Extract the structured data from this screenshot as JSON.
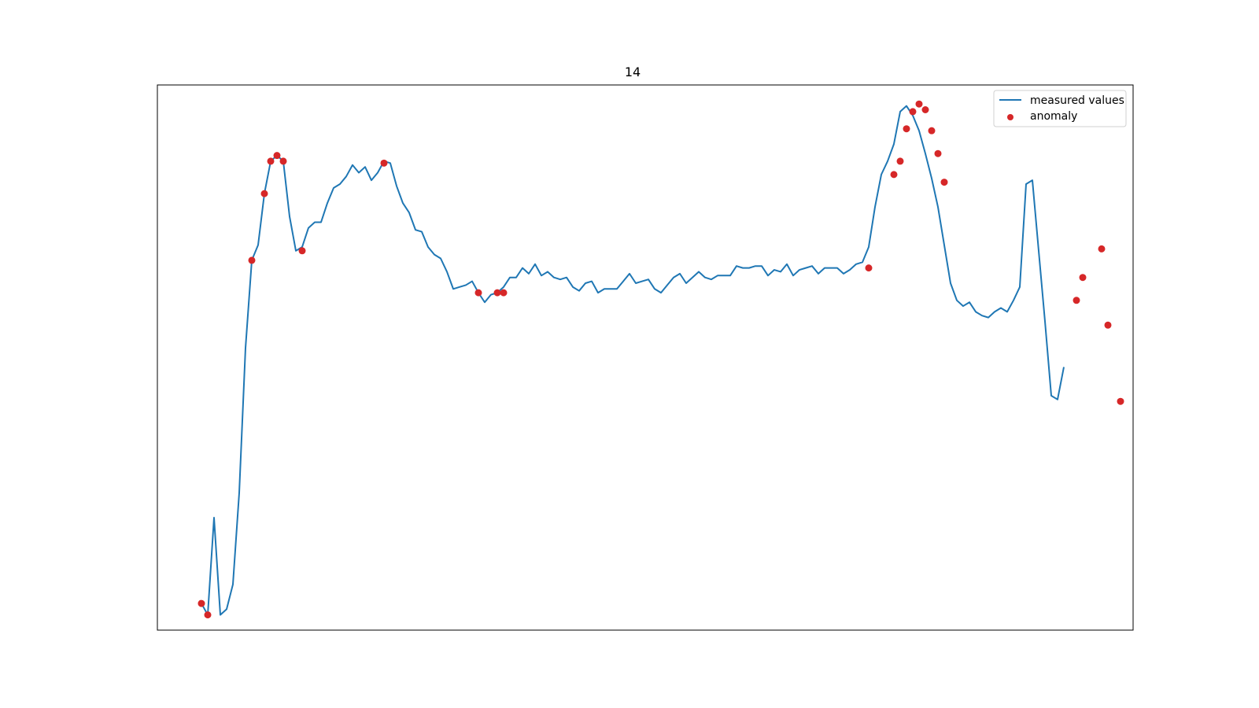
{
  "chart_data": {
    "type": "line",
    "title": "14",
    "xlabel": "",
    "ylabel": "",
    "axes_ticks": "hidden",
    "legend_position": "top-right",
    "xlim": [
      -7,
      148
    ],
    "ylim": [
      -14,
      272
    ],
    "series": [
      {
        "name": "measured values",
        "kind": "line",
        "color": "#1f77b4",
        "values": [
          0.0,
          -6.0,
          45.0,
          -6.0,
          -3.0,
          10.0,
          58.0,
          134.0,
          180.0,
          188.0,
          215.0,
          232.0,
          235.0,
          232.0,
          203.0,
          185.0,
          187.0,
          197.0,
          200.0,
          200.0,
          210.0,
          218.0,
          220.0,
          224.0,
          230.0,
          226.0,
          229.0,
          222.0,
          226.0,
          232.0,
          231.0,
          219.0,
          210.0,
          205.0,
          196.0,
          195.0,
          187.0,
          183.0,
          181.0,
          174.0,
          165.0,
          166.0,
          167.0,
          169.0,
          163.0,
          158.0,
          162.0,
          163.0,
          166.0,
          171.0,
          171.0,
          176.0,
          173.0,
          178.0,
          172.0,
          174.0,
          171.0,
          170.0,
          171.0,
          166.0,
          164.0,
          168.0,
          169.0,
          163.0,
          165.0,
          165.0,
          165.0,
          169.0,
          173.0,
          168.0,
          169.0,
          170.0,
          165.0,
          163.0,
          167.0,
          171.0,
          173.0,
          168.0,
          171.0,
          174.0,
          171.0,
          170.0,
          172.0,
          172.0,
          172.0,
          177.0,
          176.0,
          176.0,
          177.0,
          177.0,
          172.0,
          175.0,
          174.0,
          178.0,
          172.0,
          175.0,
          176.0,
          177.0,
          173.0,
          176.0,
          176.0,
          176.0,
          173.0,
          175.0,
          178.0,
          179.0,
          187.0,
          208.0,
          225.0,
          232.0,
          241.0,
          258.0,
          261.0,
          256.0,
          248.0,
          236.0,
          223.0,
          208.0,
          188.0,
          168.0,
          159.0,
          156.0,
          158.0,
          153.0,
          151.0,
          150.0,
          153.0,
          155.0,
          153.0,
          159.0,
          166.0,
          220.0,
          222.0,
          185.0,
          148.0,
          109.0,
          107.0,
          124.0
        ]
      },
      {
        "name": "anomaly",
        "kind": "scatter",
        "color": "#d62728",
        "points": [
          [
            0,
            0.0
          ],
          [
            1,
            -6.0
          ],
          [
            8,
            180.0
          ],
          [
            10,
            215.0
          ],
          [
            11,
            232.0
          ],
          [
            12,
            235.0
          ],
          [
            13,
            232.0
          ],
          [
            16,
            185.0
          ],
          [
            29,
            231.0
          ],
          [
            44,
            163.0
          ],
          [
            47,
            163.0
          ],
          [
            48,
            163.0
          ],
          [
            106,
            176.0
          ],
          [
            110,
            225.0
          ],
          [
            111,
            232.0
          ],
          [
            112,
            249.0
          ],
          [
            113,
            258.0
          ],
          [
            114,
            262.0
          ],
          [
            115,
            259.0
          ],
          [
            116,
            248.0
          ],
          [
            117,
            236.0
          ],
          [
            118,
            221.0
          ],
          [
            139,
            159.0
          ],
          [
            140,
            171.0
          ],
          [
            143,
            186.0
          ],
          [
            144,
            146.0
          ],
          [
            146,
            106.0
          ]
        ]
      }
    ]
  }
}
